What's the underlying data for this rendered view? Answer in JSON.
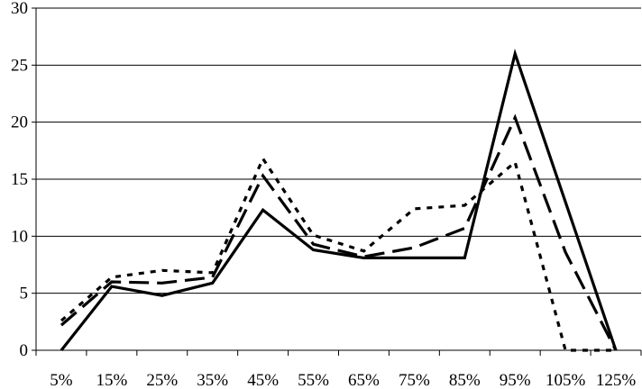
{
  "chart_data": {
    "type": "line",
    "title": "",
    "xlabel": "",
    "ylabel": "",
    "categories": [
      "5%",
      "15%",
      "25%",
      "35%",
      "45%",
      "55%",
      "65%",
      "75%",
      "85%",
      "95%",
      "105%",
      "125%"
    ],
    "ylim": [
      0,
      30
    ],
    "yticks": [
      "0",
      "5",
      "10",
      "15",
      "20",
      "25",
      "30"
    ],
    "grid": true,
    "legend": "none",
    "series": [
      {
        "style": "solid",
        "color": "#000000",
        "values": [
          0,
          5.6,
          4.8,
          5.9,
          12.3,
          8.8,
          8.1,
          8.1,
          8.1,
          26.0,
          13.0,
          0
        ]
      },
      {
        "style": "dashed",
        "color": "#000000",
        "values": [
          2.2,
          6.0,
          5.9,
          6.4,
          15.3,
          9.3,
          8.2,
          9.0,
          10.7,
          20.4,
          8.6,
          0
        ]
      },
      {
        "style": "dotted",
        "color": "#000000",
        "values": [
          2.6,
          6.4,
          7.0,
          6.8,
          16.8,
          10.1,
          8.7,
          12.4,
          12.7,
          16.5,
          0,
          0
        ]
      }
    ]
  }
}
